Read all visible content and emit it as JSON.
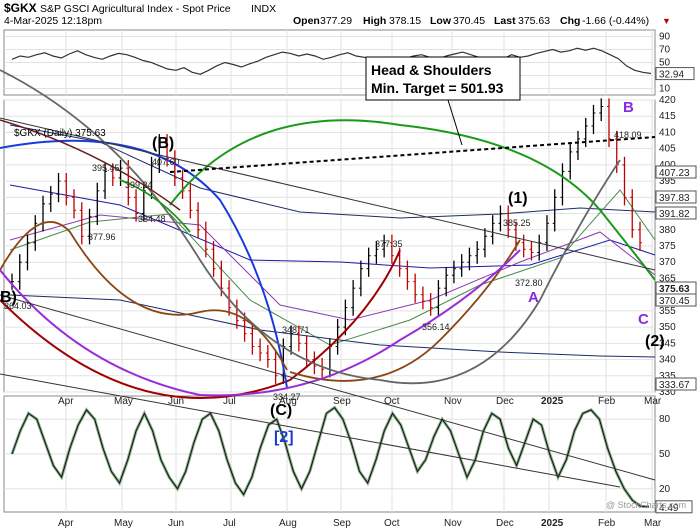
{
  "header": {
    "symbol": "$GKX",
    "name": "S&P GSCI Agricultural Index - Spot Price",
    "exchange": "INDX",
    "datetime": "4-Mar-2025 12:18pm",
    "open_label": "Open",
    "open": "377.29",
    "high_label": "High",
    "high": "378.15",
    "low_label": "Low",
    "low": "370.45",
    "last_label": "Last",
    "last": "375.63",
    "chg_label": "Chg",
    "chg": "-1.66 (-0.44%)",
    "chg_arrow": "▼",
    "watermark": "@ StockCharts.com"
  },
  "legend": {
    "series": "$GKX (Daily) 375.63"
  },
  "colors": {
    "price": "#000000",
    "ma_blue": "#1a1aaa",
    "ma_navy": "#1c2b6b",
    "ma_green": "#4a8a4a",
    "ma_purple": "#8a3bb0",
    "arc_red": "#a00000",
    "arc_blue": "#1a3bdc",
    "arc_green": "#1a9a1a",
    "arc_brown": "#8b4513",
    "arc_purple": "#9a2bd8",
    "arc_gray": "#666666",
    "annotation_blue": "#1a3bdc",
    "wave_purple": "#8a2be2",
    "down": "#c00000",
    "up": "#000000"
  },
  "annotations": {
    "hs_line1": "Head & Shoulders",
    "hs_line2": "Min. Target = 501.93",
    "wave_B_paren": "(B)",
    "wave_1_paren": "(1)",
    "wave_C_paren": "(C)",
    "wave_2_paren": "(2)",
    "wave_2_bracket": "[2]",
    "wave_B_paren_left": "B)",
    "wave_A": "A",
    "wave_B": "B",
    "wave_C": "C",
    "price_labels": [
      "407.60",
      "395.45",
      "399.24",
      "384.48",
      "377.96",
      "364.03",
      "377.35",
      "348.71",
      "334.27",
      "356.14",
      "385.25",
      "372.80",
      "418.09"
    ]
  },
  "chart_data": [
    {
      "type": "line",
      "title": "",
      "panel": "RSI (top indicator)",
      "ylim": [
        0,
        100
      ],
      "y_ticks": [
        10,
        30,
        50,
        70,
        90
      ],
      "last_value": 32.94,
      "series": [
        {
          "values": [
            55,
            60,
            58,
            62,
            65,
            60,
            57,
            63,
            68,
            62,
            58,
            55,
            60,
            64,
            62,
            58,
            53,
            50,
            45,
            40,
            38,
            42,
            35,
            32,
            38,
            45,
            50,
            47,
            43,
            48,
            52,
            58,
            62,
            66,
            64,
            60,
            63,
            60,
            55,
            58,
            62,
            65,
            60,
            58,
            55,
            57,
            54,
            50,
            56,
            60,
            62,
            58,
            55,
            60,
            63,
            66,
            62,
            58,
            55,
            50,
            56,
            62,
            58,
            60,
            64,
            67,
            70,
            66,
            68,
            72,
            69,
            72,
            68,
            62,
            56,
            45,
            38,
            35,
            33
          ]
        }
      ]
    },
    {
      "type": "line",
      "title": "",
      "panel": "price",
      "ylim": [
        330,
        420
      ],
      "y_ticks": [
        330,
        335,
        340,
        345,
        350,
        355,
        360,
        365,
        370,
        375,
        380,
        385,
        390,
        395,
        400,
        405,
        410,
        415,
        420
      ],
      "x_ticks": [
        "Apr",
        "May",
        "Jun",
        "Jul",
        "Aug",
        "Sep",
        "Oct",
        "Nov",
        "Dec",
        "2025",
        "Feb",
        "Mar"
      ],
      "last_value_labels": [
        "407.23",
        "397.83",
        "391.82",
        "375.63",
        "370.45",
        "333.67"
      ],
      "series": [
        {
          "values": [
            364,
            370,
            376,
            382,
            388,
            391,
            395,
            390,
            386,
            378,
            384,
            392,
            398,
            396,
            399,
            390,
            385,
            392,
            400,
            407,
            402,
            396,
            392,
            386,
            380,
            374,
            368,
            362,
            356,
            352,
            348,
            344,
            342,
            340,
            335,
            344,
            348,
            345,
            340,
            338,
            337,
            344,
            350,
            356,
            362,
            368,
            372,
            374,
            376,
            372,
            368,
            364,
            360,
            358,
            356,
            362,
            366,
            368,
            370,
            372,
            374,
            378,
            382,
            385,
            380,
            376,
            374,
            373,
            376,
            382,
            390,
            398,
            404,
            408,
            412,
            416,
            418,
            408,
            400,
            390,
            380,
            376
          ]
        }
      ]
    },
    {
      "type": "line",
      "title": "",
      "panel": "stochastic (bottom indicator)",
      "ylim": [
        0,
        100
      ],
      "y_ticks": [
        20,
        50,
        80
      ],
      "last_value": 4.49,
      "series": [
        {
          "values": [
            50,
            70,
            85,
            80,
            60,
            40,
            30,
            55,
            75,
            88,
            80,
            55,
            35,
            25,
            45,
            70,
            85,
            70,
            45,
            30,
            20,
            35,
            60,
            80,
            85,
            70,
            45,
            25,
            15,
            30,
            55,
            75,
            80,
            60,
            35,
            20,
            35,
            60,
            85,
            90,
            80,
            60,
            35,
            25,
            45,
            70,
            85,
            75,
            55,
            35,
            45,
            65,
            80,
            70,
            50,
            30,
            45,
            70,
            85,
            80,
            55,
            40,
            60,
            80,
            75,
            50,
            30,
            45,
            70,
            85,
            88,
            80,
            55,
            35,
            20,
            10,
            5,
            4.49
          ]
        }
      ]
    }
  ]
}
